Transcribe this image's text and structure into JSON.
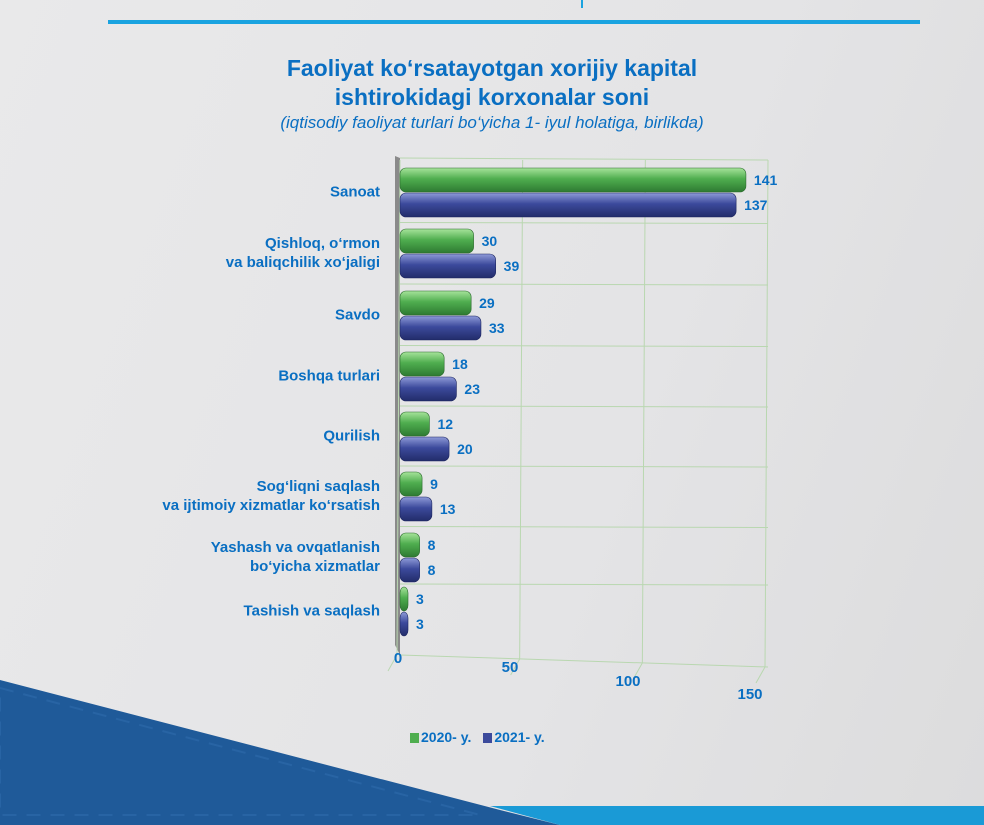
{
  "chart_data": {
    "type": "bar",
    "orientation": "horizontal",
    "title": "Faoliyat ko‘rsatayotgan xorijiy kapital ishtirokidagi korxonalar soni",
    "title_lines": [
      "Faoliyat ko‘rsatayotgan xorijiy kapital",
      "ishtirokidagi korxonalar soni"
    ],
    "subtitle": "(iqtisodiy faoliyat turlari bo‘yicha 1- iyul holatiga, birlikda)",
    "categories": [
      [
        "Sanoat"
      ],
      [
        "Qishloq, o‘rmon",
        "va baliqchilik xo‘jaligi"
      ],
      [
        "Savdo"
      ],
      [
        "Boshqa turlari"
      ],
      [
        "Qurilish"
      ],
      [
        "Sog‘liqni saqlash",
        "va ijtimoiy xizmatlar ko‘rsatish"
      ],
      [
        "Yashash va ovqatlanish",
        "bo‘yicha xizmatlar"
      ],
      [
        "Tashish va saqlash"
      ]
    ],
    "series": [
      {
        "name": "2020- y.",
        "color": "#4fae4f",
        "values": [
          141,
          30,
          29,
          18,
          12,
          9,
          8,
          3
        ]
      },
      {
        "name": "2021- y.",
        "color": "#3c4a9c",
        "values": [
          137,
          39,
          33,
          23,
          20,
          13,
          8,
          3
        ]
      }
    ],
    "xticks": [
      "0",
      "50",
      "100",
      "150"
    ],
    "xlim": [
      0,
      150
    ],
    "grid": true,
    "legend": "bottom"
  }
}
